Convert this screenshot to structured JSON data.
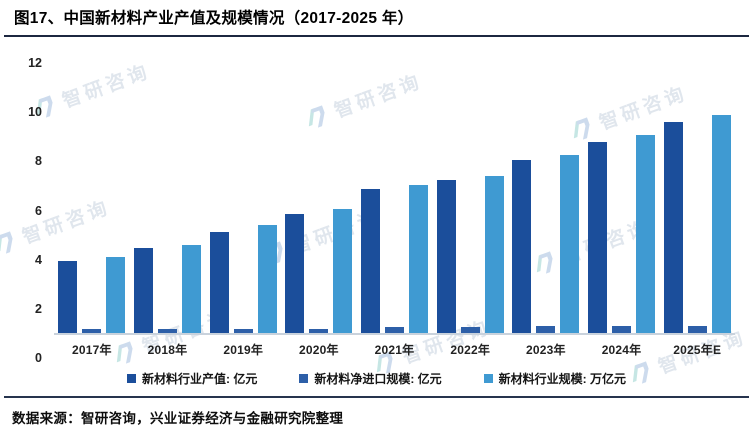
{
  "title": "图17、中国新材料产业产值及规模情况（2017-2025 年）",
  "source": "数据来源：智研咨询，兴业证券经济与金融研究院整理",
  "watermark": {
    "text": "智研咨询",
    "logo_teal": "#8ecfca",
    "logo_blue": "#9db9dd"
  },
  "chart_data": {
    "type": "bar",
    "title": "中国新材料产业产值及规模情况（2017-2025 年）",
    "categories": [
      "2017年",
      "2018年",
      "2019年",
      "2020年",
      "2021年",
      "2022年",
      "2023年",
      "2024年",
      "2025年E"
    ],
    "series": [
      {
        "name": "新材料行业产值: 亿元",
        "color": "#1b4e9b",
        "values": [
          3.2,
          3.8,
          4.5,
          5.3,
          6.4,
          6.8,
          7.7,
          8.5,
          9.4
        ]
      },
      {
        "name": "新材料净进口规模: 亿元",
        "color": "#2d5fa8",
        "values": [
          0.2,
          0.2,
          0.2,
          0.2,
          0.25,
          0.25,
          0.3,
          0.3,
          0.3
        ]
      },
      {
        "name": "新材料行业规模: 万亿元",
        "color": "#3f9ad2",
        "values": [
          3.4,
          3.9,
          4.8,
          5.5,
          6.6,
          7.0,
          7.9,
          8.8,
          9.7
        ]
      }
    ],
    "xlabel": "",
    "ylabel": "",
    "ylim": [
      0,
      12
    ],
    "yticks": [
      0,
      2,
      4,
      6,
      8,
      10,
      12
    ],
    "grid": false,
    "legend_position": "bottom"
  }
}
